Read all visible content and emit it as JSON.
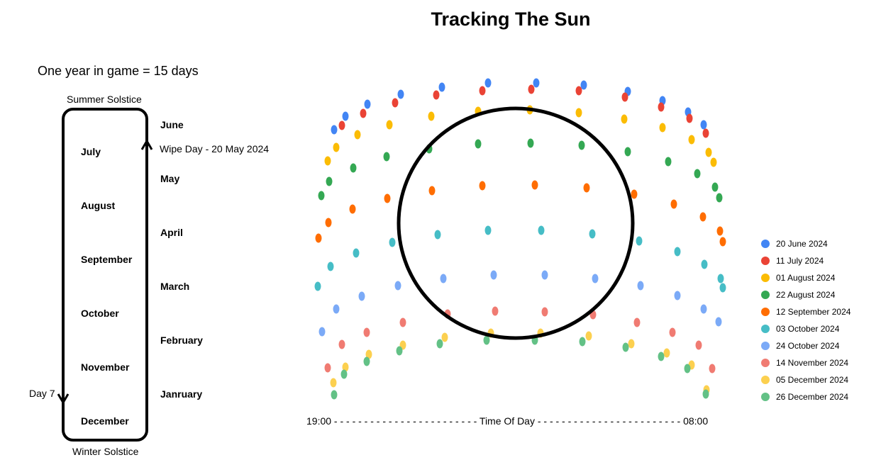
{
  "title": "Tracking The Sun",
  "calendar": {
    "note": "One year in game = 15 days",
    "summer_solstice": "Summer Solstice",
    "winter_solstice": "Winter Solstice",
    "left_months": [
      "July",
      "August",
      "September",
      "October",
      "November",
      "December"
    ],
    "right_months": [
      "June",
      "May",
      "April",
      "March",
      "February",
      "Janruary"
    ],
    "wipe_day": "Wipe Day - 20 May 2024",
    "day_marker": "Day 7"
  },
  "chart_data": {
    "type": "scatter",
    "title": "Tracking The Sun",
    "x_axis_text": "19:00 - - - - - - - - - - - - - - - - - - - - - - - - Time Of Day - - - - - - - - - - - - - - - - - - - - - - - - 08:00",
    "x_start_label": "19:00",
    "x_end_label": "08:00",
    "xlabel": "Time Of Day",
    "legend_position": "right",
    "grid": false,
    "series": [
      {
        "name": "20 June 2024",
        "color": "#4285F4",
        "points": [
          [
            471,
            183
          ],
          [
            487,
            164
          ],
          [
            518,
            147
          ],
          [
            565,
            133
          ],
          [
            623,
            123
          ],
          [
            688,
            117
          ],
          [
            756,
            117
          ],
          [
            823,
            120
          ],
          [
            885,
            129
          ],
          [
            934,
            142
          ],
          [
            970,
            158
          ],
          [
            992,
            176
          ]
        ]
      },
      {
        "name": "11 July 2024",
        "color": "#EA4335",
        "points": [
          [
            482,
            177
          ],
          [
            512,
            160
          ],
          [
            557,
            145
          ],
          [
            615,
            134
          ],
          [
            680,
            128
          ],
          [
            749,
            126
          ],
          [
            816,
            128
          ],
          [
            881,
            137
          ],
          [
            932,
            151
          ],
          [
            972,
            167
          ],
          [
            995,
            188
          ]
        ]
      },
      {
        "name": "01 August 2024",
        "color": "#FBBC04",
        "points": [
          [
            462,
            227
          ],
          [
            474,
            208
          ],
          [
            504,
            190
          ],
          [
            549,
            176
          ],
          [
            608,
            164
          ],
          [
            674,
            157
          ],
          [
            747,
            155
          ],
          [
            816,
            159
          ],
          [
            880,
            168
          ],
          [
            934,
            180
          ],
          [
            975,
            197
          ],
          [
            999,
            215
          ],
          [
            1006,
            229
          ]
        ]
      },
      {
        "name": "22 August 2024",
        "color": "#34A853",
        "points": [
          [
            453,
            276
          ],
          [
            464,
            256
          ],
          [
            498,
            237
          ],
          [
            545,
            221
          ],
          [
            605,
            210
          ],
          [
            674,
            203
          ],
          [
            748,
            202
          ],
          [
            820,
            205
          ],
          [
            885,
            214
          ],
          [
            942,
            228
          ],
          [
            983,
            245
          ],
          [
            1008,
            264
          ],
          [
            1014,
            279
          ]
        ]
      },
      {
        "name": "12 September 2024",
        "color": "#FF6D01",
        "points": [
          [
            449,
            336
          ],
          [
            463,
            314
          ],
          [
            497,
            295
          ],
          [
            546,
            280
          ],
          [
            609,
            269
          ],
          [
            680,
            262
          ],
          [
            754,
            261
          ],
          [
            827,
            265
          ],
          [
            894,
            274
          ],
          [
            950,
            288
          ],
          [
            991,
            306
          ],
          [
            1015,
            326
          ],
          [
            1019,
            341
          ]
        ]
      },
      {
        "name": "03 October 2024",
        "color": "#46BDC6",
        "points": [
          [
            448,
            404
          ],
          [
            466,
            376
          ],
          [
            502,
            357
          ],
          [
            553,
            342
          ],
          [
            617,
            331
          ],
          [
            688,
            325
          ],
          [
            763,
            325
          ],
          [
            835,
            330
          ],
          [
            901,
            340
          ],
          [
            955,
            355
          ],
          [
            993,
            373
          ],
          [
            1016,
            393
          ],
          [
            1019,
            406
          ]
        ]
      },
      {
        "name": "24 October 2024",
        "color": "#7BAAF7",
        "points": [
          [
            454,
            468
          ],
          [
            474,
            436
          ],
          [
            510,
            418
          ],
          [
            561,
            403
          ],
          [
            625,
            393
          ],
          [
            696,
            388
          ],
          [
            768,
            388
          ],
          [
            839,
            393
          ],
          [
            903,
            403
          ],
          [
            955,
            417
          ],
          [
            992,
            436
          ],
          [
            1013,
            454
          ]
        ]
      },
      {
        "name": "14 November 2024",
        "color": "#F07B72",
        "points": [
          [
            462,
            519
          ],
          [
            482,
            486
          ],
          [
            517,
            469
          ],
          [
            568,
            455
          ],
          [
            631,
            443
          ],
          [
            698,
            439
          ],
          [
            768,
            440
          ],
          [
            836,
            444
          ],
          [
            898,
            455
          ],
          [
            948,
            469
          ],
          [
            985,
            487
          ],
          [
            1004,
            520
          ]
        ]
      },
      {
        "name": "05 December 2024",
        "color": "#FCD04F",
        "points": [
          [
            470,
            540
          ],
          [
            487,
            518
          ],
          [
            520,
            500
          ],
          [
            568,
            487
          ],
          [
            627,
            476
          ],
          [
            692,
            470
          ],
          [
            762,
            470
          ],
          [
            830,
            474
          ],
          [
            890,
            485
          ],
          [
            940,
            498
          ],
          [
            975,
            515
          ],
          [
            996,
            550
          ]
        ]
      },
      {
        "name": "26 December 2024",
        "color": "#63C186",
        "points": [
          [
            471,
            557
          ],
          [
            485,
            528
          ],
          [
            517,
            510
          ],
          [
            563,
            495
          ],
          [
            620,
            485
          ],
          [
            686,
            480
          ],
          [
            754,
            480
          ],
          [
            821,
            482
          ],
          [
            882,
            490
          ],
          [
            932,
            503
          ],
          [
            969,
            520
          ],
          [
            995,
            556
          ]
        ]
      }
    ]
  }
}
